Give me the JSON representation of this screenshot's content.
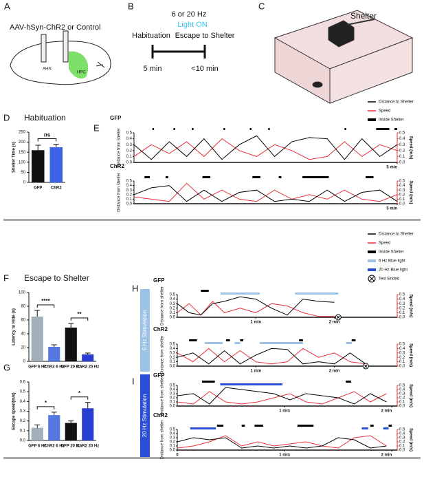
{
  "panels": {
    "A": {
      "label": "A",
      "title": "AAV-hSyn-ChR2 or Control",
      "regions": [
        "AHN",
        "HPC"
      ]
    },
    "B": {
      "label": "B",
      "freq": "6 or 20 Hz",
      "light": "Light ON",
      "phase1": "Habituation",
      "phase2": "Escape to Shelter",
      "dur1": "5 min",
      "dur2": "<10 min"
    },
    "C": {
      "label": "C",
      "shelter": "Shelter"
    },
    "E": {
      "label": "E"
    },
    "H": {
      "label": "H"
    },
    "I": {
      "label": "I"
    },
    "sides": [
      "6 Hz Stimulation",
      "20 Hz Stimulation"
    ]
  },
  "legends": [
    {
      "items": [
        {
          "name": "Distance to Shelter",
          "color": "#000000",
          "kind": "line"
        },
        {
          "name": "Speed",
          "color": "#e8303a",
          "kind": "line"
        },
        {
          "name": "Inside Shelter",
          "color": "#000000",
          "kind": "bar"
        }
      ]
    },
    {
      "items": [
        {
          "name": "Distance to Shelter",
          "color": "#000000",
          "kind": "line"
        },
        {
          "name": "Speed",
          "color": "#e8303a",
          "kind": "line"
        },
        {
          "name": "Inside Shelter",
          "color": "#000000",
          "kind": "bar"
        },
        {
          "name": "6 Hz Blue light",
          "color": "#9cc3e6",
          "kind": "bar"
        },
        {
          "name": "20 Hz Blue light",
          "color": "#2a4fd6",
          "kind": "bar"
        },
        {
          "name": "Test Ended",
          "color": "#000000",
          "kind": "x"
        }
      ]
    }
  ],
  "chart_data": [
    {
      "type": "bar",
      "panel": "D",
      "title": "Habituation",
      "ylabel": "Shelter Time (s)",
      "categories": [
        "GFP",
        "ChR2"
      ],
      "values": [
        160,
        175
      ],
      "errors": [
        25,
        15
      ],
      "colors": [
        "#111111",
        "#3d64e6"
      ],
      "significance": [
        "ns"
      ],
      "ylim": [
        0,
        250
      ],
      "yticks": [
        0,
        50,
        100,
        150,
        200,
        250
      ]
    },
    {
      "type": "bar",
      "panel": "F",
      "title": "Escape to Shelter",
      "ylabel": "Latency to Hide (s)",
      "categories": [
        "GFP 6 Hz",
        "ChR2 6 Hz",
        "GFP 20 Hz",
        "ChR2 20 Hz"
      ],
      "values": [
        65,
        21,
        49,
        10
      ],
      "errors": [
        9,
        3,
        6,
        2
      ],
      "colors": [
        "#9fb0ba",
        "#5577e0",
        "#111111",
        "#2a3fd0"
      ],
      "significance": [
        "****",
        "**"
      ],
      "ylim": [
        0,
        100
      ],
      "yticks": [
        0,
        20,
        40,
        60,
        80,
        100
      ]
    },
    {
      "type": "bar",
      "panel": "G",
      "ylabel": "Escape speed(m/s)",
      "categories": [
        "GFP 6 Hz",
        "ChR2 6 Hz",
        "GFP 20 Hz",
        "ChR2 20 Hz"
      ],
      "values": [
        0.13,
        0.26,
        0.18,
        0.33
      ],
      "errors": [
        0.03,
        0.03,
        0.02,
        0.06
      ],
      "colors": [
        "#9fb0ba",
        "#5577e0",
        "#111111",
        "#2a3fd0"
      ],
      "significance": [
        "*",
        "*"
      ],
      "ylim": [
        0,
        0.6
      ],
      "yticks": [
        {
          "value": 0,
          "label": "0.0"
        },
        0.1,
        0.2,
        0.3,
        0.4,
        0.5,
        0.6
      ]
    },
    {
      "type": "trace",
      "panel": "E",
      "title": "GFP",
      "ylabel": "Distance from shelter",
      "y2label": "Speed (m/s)",
      "xlim": [
        0,
        5
      ],
      "xticks": [
        {
          "value": 5,
          "label": "5 min"
        }
      ],
      "ylim": [
        0,
        0.5
      ],
      "yticks": [
        {
          "value": 0,
          "label": "0.0"
        },
        0.1,
        0.2,
        0.3,
        0.4,
        0.5
      ],
      "y2lim": [
        0,
        0.5
      ],
      "y2ticks": [
        {
          "value": 0,
          "label": "0.0"
        },
        0.1,
        0.2,
        0.3,
        0.4,
        0.5
      ],
      "x": [
        0,
        0.33,
        0.67,
        1,
        1.33,
        1.67,
        2,
        2.33,
        2.67,
        3,
        3.33,
        3.67,
        4,
        4.33,
        4.67,
        5
      ],
      "series": [
        {
          "name": "Distance to Shelter",
          "color": "#000000",
          "values": [
            0.3,
            0.05,
            0.35,
            0.1,
            0.4,
            0.05,
            0.3,
            0.45,
            0.1,
            0.35,
            0.42,
            0.4,
            0.05,
            0.4,
            0.1,
            0.3
          ]
        },
        {
          "name": "Speed",
          "color": "#e8303a",
          "axis": "y2",
          "values": [
            0.1,
            0.3,
            0.15,
            0.35,
            0.1,
            0.4,
            0.2,
            0.1,
            0.3,
            0.2,
            0.05,
            0.1,
            0.35,
            0.1,
            0.3,
            0.2
          ]
        }
      ],
      "shelter": [
        [
          0.35,
          0.38
        ],
        [
          0.75,
          0.78
        ],
        [
          1.1,
          1.13
        ],
        [
          1.7,
          1.73
        ],
        [
          2.2,
          2.23
        ],
        [
          2.55,
          2.58
        ],
        [
          4.0,
          4.03
        ],
        [
          4.6,
          4.85
        ],
        [
          4.95,
          5
        ]
      ]
    },
    {
      "type": "trace",
      "panel": "E",
      "title": "ChR2",
      "ylabel": "Distance from shelter",
      "y2label": "Speed (m/s)",
      "xlim": [
        0,
        5
      ],
      "xticks": [
        {
          "value": 5,
          "label": "5 min"
        }
      ],
      "ylim": [
        0,
        0.5
      ],
      "yticks": [
        {
          "value": 0,
          "label": "0.0"
        },
        0.1,
        0.2,
        0.3,
        0.4,
        0.5
      ],
      "y2lim": [
        0,
        0.5
      ],
      "y2ticks": [
        {
          "value": 0,
          "label": "0.0"
        },
        0.1,
        0.2,
        0.3,
        0.4,
        0.5
      ],
      "x": [
        0,
        0.33,
        0.67,
        1,
        1.33,
        1.67,
        2,
        2.33,
        2.67,
        3,
        3.33,
        3.67,
        4,
        4.33,
        4.67,
        5
      ],
      "series": [
        {
          "name": "Distance to Shelter",
          "color": "#000000",
          "values": [
            0.2,
            0.35,
            0.4,
            0.05,
            0.3,
            0.05,
            0.25,
            0.3,
            0.05,
            0.1,
            0.05,
            0.3,
            0.05,
            0.25,
            0.3,
            0.05
          ]
        },
        {
          "name": "Speed",
          "color": "#e8303a",
          "axis": "y2",
          "values": [
            0.15,
            0.1,
            0.05,
            0.45,
            0.1,
            0.3,
            0.1,
            0.05,
            0.3,
            0.1,
            0.2,
            0.1,
            0.3,
            0.1,
            0.05,
            0.2
          ]
        }
      ],
      "shelter": [
        [
          0.2,
          0.3
        ],
        [
          0.6,
          0.65
        ],
        [
          1.3,
          1.45
        ],
        [
          2.25,
          2.4
        ],
        [
          2.75,
          2.8
        ],
        [
          3.2,
          3.7
        ],
        [
          4.4,
          4.55
        ]
      ]
    },
    {
      "type": "trace",
      "panel": "H",
      "title": "GFP",
      "ylabel": "Distance from shelter",
      "y2label": "Speed (m/s)",
      "xlim": [
        0,
        2.8
      ],
      "xticks": [
        {
          "value": 1,
          "label": "1 min"
        },
        {
          "value": 2,
          "label": "2 min"
        }
      ],
      "ylim": [
        0,
        0.5
      ],
      "yticks": [
        {
          "value": 0,
          "label": "0.0"
        },
        0.1,
        0.2,
        0.3,
        0.4,
        0.5
      ],
      "y2lim": [
        0,
        0.5
      ],
      "y2ticks": [
        {
          "value": 0,
          "label": "0.0"
        },
        0.1,
        0.2,
        0.3,
        0.4,
        0.5
      ],
      "x": [
        0,
        0.15,
        0.3,
        0.45,
        0.6,
        0.8,
        1.0,
        1.2,
        1.4,
        1.6,
        1.8,
        2.0
      ],
      "series": [
        {
          "name": "Distance to Shelter",
          "color": "#000000",
          "values": [
            0.3,
            0.1,
            0.05,
            0.3,
            0.35,
            0.45,
            0.4,
            0.2,
            0.05,
            0.4,
            0.35,
            0.33
          ]
        },
        {
          "name": "Speed",
          "color": "#e8303a",
          "axis": "y2",
          "values": [
            0.1,
            0.3,
            0.05,
            0.35,
            0.1,
            0.2,
            0.1,
            0.3,
            0.25,
            0.1,
            0.02,
            0.02
          ]
        }
      ],
      "shelter": [
        [
          0.3,
          0.4
        ]
      ],
      "light": [
        [
          0.55,
          1.05
        ],
        [
          1.5,
          2.05
        ]
      ],
      "light_color": "#9cc3e6",
      "ended": 2.05
    },
    {
      "type": "trace",
      "panel": "H",
      "title": "ChR2",
      "ylabel": "Distance from shelter",
      "y2label": "Speed (m/s)",
      "xlim": [
        0,
        2.8
      ],
      "xticks": [
        {
          "value": 1,
          "label": "1 min"
        },
        {
          "value": 2,
          "label": "2 min"
        }
      ],
      "ylim": [
        0,
        0.5
      ],
      "yticks": [
        {
          "value": 0,
          "label": "0.0"
        },
        0.1,
        0.2,
        0.3,
        0.4,
        0.5
      ],
      "y2lim": [
        0,
        0.5
      ],
      "y2ticks": [
        {
          "value": 0,
          "label": "0.0"
        },
        0.1,
        0.2,
        0.3,
        0.4,
        0.5
      ],
      "x": [
        0,
        0.2,
        0.4,
        0.6,
        0.8,
        1.0,
        1.2,
        1.4,
        1.6,
        1.8,
        2.0,
        2.2,
        2.4
      ],
      "series": [
        {
          "name": "Distance to Shelter",
          "color": "#000000",
          "values": [
            0.2,
            0.3,
            0.05,
            0.35,
            0.05,
            0.25,
            0.4,
            0.38,
            0.05,
            0.1,
            0.05,
            0.3,
            0.05
          ]
        },
        {
          "name": "Speed",
          "color": "#e8303a",
          "axis": "y2",
          "values": [
            0.3,
            0.1,
            0.4,
            0.1,
            0.35,
            0.1,
            0.05,
            0.1,
            0.4,
            0.2,
            0.3,
            0.1,
            0.05
          ]
        }
      ],
      "shelter": [
        [
          0.15,
          0.25
        ],
        [
          0.62,
          0.67
        ],
        [
          0.8,
          0.84
        ],
        [
          1.55,
          1.6
        ],
        [
          2.22,
          2.27
        ]
      ],
      "light": [
        [
          0.35,
          0.58
        ],
        [
          0.73,
          0.8
        ],
        [
          1.05,
          1.6
        ],
        [
          2.15,
          2.22
        ]
      ],
      "light_color": "#9cc3e6",
      "ended": 2.4
    },
    {
      "type": "trace",
      "panel": "I",
      "title": "GFP",
      "ylabel": "Distance from shelter",
      "y2label": "Speed (m/s)",
      "xlim": [
        0,
        2.05
      ],
      "xticks": [
        {
          "value": 1,
          "label": "1 min"
        },
        {
          "value": 2,
          "label": "2 min"
        }
      ],
      "ylim": [
        0,
        0.5
      ],
      "yticks": [
        {
          "value": 0,
          "label": "0.0"
        },
        0.1,
        0.2,
        0.3,
        0.4,
        0.5
      ],
      "y2lim": [
        0,
        0.5
      ],
      "y2ticks": [
        {
          "value": 0,
          "label": "0.0"
        },
        0.1,
        0.2,
        0.3,
        0.4,
        0.5
      ],
      "x": [
        0,
        0.15,
        0.3,
        0.45,
        0.6,
        0.75,
        0.9,
        1.05,
        1.2,
        1.35,
        1.5,
        1.65,
        1.8,
        1.95
      ],
      "series": [
        {
          "name": "Distance to Shelter",
          "color": "#000000",
          "values": [
            0.25,
            0.3,
            0.05,
            0.45,
            0.4,
            0.35,
            0.3,
            0.15,
            0.3,
            0.25,
            0.2,
            0.05,
            0.3,
            0.1
          ]
        },
        {
          "name": "Speed",
          "color": "#e8303a",
          "axis": "y2",
          "values": [
            0.1,
            0.05,
            0.35,
            0.1,
            0.05,
            0.1,
            0.2,
            0.3,
            0.1,
            0.05,
            0.2,
            0.35,
            0.1,
            0.3
          ]
        }
      ],
      "shelter": [
        [
          0.23,
          0.35
        ],
        [
          1.57,
          1.62
        ]
      ],
      "light": [
        [
          0.4,
          0.98
        ]
      ],
      "light_color": "#2a4fd6"
    },
    {
      "type": "trace",
      "panel": "I",
      "title": "ChR2",
      "ylabel": "Distance from shelter",
      "y2label": "Speed (m/s)",
      "xlim": [
        0,
        2.05
      ],
      "xticks": [
        {
          "value": 0,
          "label": "0"
        },
        {
          "value": 1,
          "label": "1 min"
        },
        {
          "value": 2,
          "label": "2 min"
        }
      ],
      "ylim": [
        0,
        0.5
      ],
      "yticks": [
        {
          "value": 0,
          "label": "0.0"
        },
        0.1,
        0.2,
        0.3,
        0.4,
        0.5
      ],
      "y2lim": [
        0,
        0.5
      ],
      "y2ticks": [
        {
          "value": 0,
          "label": "0.0"
        },
        0.1,
        0.2,
        0.3,
        0.4,
        0.5
      ],
      "x": [
        0,
        0.15,
        0.3,
        0.45,
        0.6,
        0.75,
        0.9,
        1.05,
        1.2,
        1.35,
        1.5,
        1.65,
        1.8,
        1.95
      ],
      "series": [
        {
          "name": "Distance to Shelter",
          "color": "#000000",
          "values": [
            0.2,
            0.3,
            0.25,
            0.3,
            0.05,
            0.1,
            0.05,
            0.1,
            0.05,
            0.1,
            0.3,
            0.25,
            0.05,
            0.1
          ]
        },
        {
          "name": "Speed",
          "color": "#e8303a",
          "axis": "y2",
          "values": [
            0.05,
            0.1,
            0.2,
            0.35,
            0.1,
            0.2,
            0.1,
            0.15,
            0.2,
            0.1,
            0.05,
            0.3,
            0.35,
            0.1
          ]
        }
      ],
      "shelter": [
        [
          0.37,
          0.43
        ],
        [
          0.6,
          0.63
        ],
        [
          0.72,
          0.8
        ],
        [
          1.12,
          1.27
        ],
        [
          1.8,
          1.83
        ],
        [
          1.97,
          2.0
        ]
      ],
      "light": [
        [
          0.12,
          0.36
        ],
        [
          1.72,
          1.78
        ],
        [
          1.92,
          1.97
        ]
      ],
      "light_color": "#2a4fd6"
    }
  ]
}
